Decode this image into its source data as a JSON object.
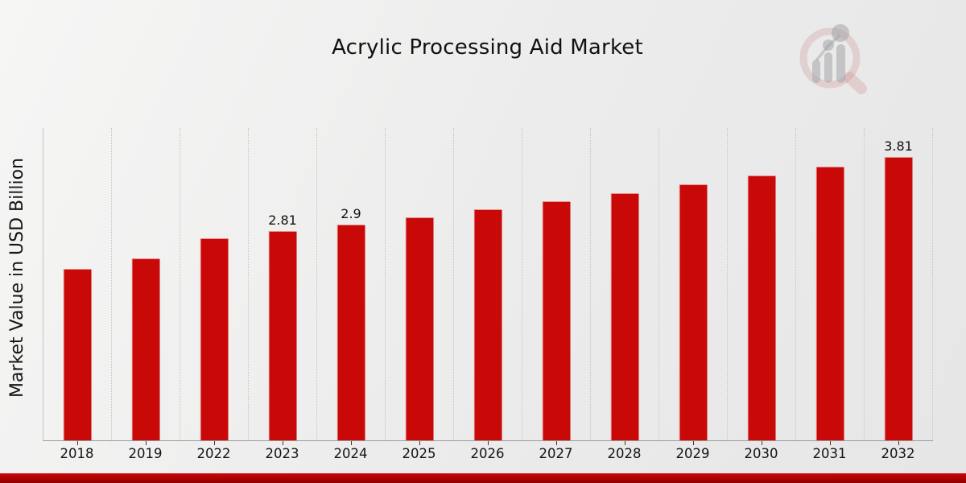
{
  "chart_data": {
    "type": "bar",
    "title": "Acrylic Processing Aid Market",
    "xlabel": "",
    "ylabel": "Market Value in USD Billion",
    "categories": [
      "2018",
      "2019",
      "2022",
      "2023",
      "2024",
      "2025",
      "2026",
      "2027",
      "2028",
      "2029",
      "2030",
      "2031",
      "2032"
    ],
    "values": [
      2.31,
      2.45,
      2.72,
      2.81,
      2.9,
      3.0,
      3.11,
      3.21,
      3.32,
      3.44,
      3.56,
      3.68,
      3.81
    ],
    "data_labels": [
      "",
      "",
      "",
      "2.81",
      "2.9",
      "",
      "",
      "",
      "",
      "",
      "",
      "",
      "3.81"
    ],
    "ylim": [
      0,
      4.2
    ],
    "grid": "vertical-dotted",
    "legend": "none",
    "bar_color": "#c90808",
    "units": "USD Billion"
  },
  "decorations": {
    "bottom_band_colors": [
      "#c90707",
      "#8e0000"
    ],
    "watermark_icon": "magnifier-growth-chart-logo",
    "background_color": "#ececec"
  }
}
